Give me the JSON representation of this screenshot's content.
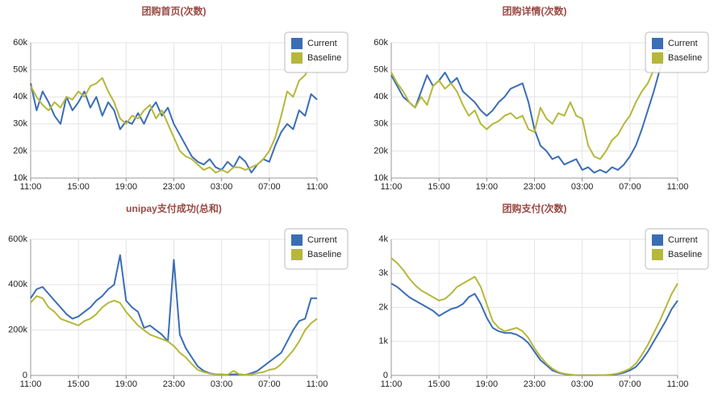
{
  "chart_data": [
    {
      "type": "line",
      "title": "团购首页(次数)",
      "x": [
        0,
        0.5,
        1,
        1.5,
        2,
        2.5,
        3,
        3.5,
        4,
        4.5,
        5,
        5.5,
        6,
        6.5,
        7,
        7.5,
        8,
        8.5,
        9,
        9.5,
        10,
        10.5,
        11,
        11.5,
        12,
        12.5,
        13,
        13.5,
        14,
        14.5,
        15,
        15.5,
        16,
        16.5,
        17,
        17.5,
        18,
        18.5,
        19,
        19.5,
        20,
        20.5,
        21,
        21.5,
        22,
        22.5,
        23,
        23.5,
        24
      ],
      "xlim": [
        0,
        24
      ],
      "xticks": [
        {
          "value": 0,
          "label": "11:00"
        },
        {
          "value": 4,
          "label": "15:00"
        },
        {
          "value": 8,
          "label": "19:00"
        },
        {
          "value": 12,
          "label": "23:00"
        },
        {
          "value": 16,
          "label": "03:00"
        },
        {
          "value": 20,
          "label": "07:00"
        },
        {
          "value": 24,
          "label": "11:00"
        }
      ],
      "ylim": [
        10000,
        60000
      ],
      "yticks": [
        {
          "value": 10000,
          "label": "10k"
        },
        {
          "value": 20000,
          "label": "20k"
        },
        {
          "value": 30000,
          "label": "30k"
        },
        {
          "value": 40000,
          "label": "40k"
        },
        {
          "value": 50000,
          "label": "50k"
        },
        {
          "value": 60000,
          "label": "60k"
        }
      ],
      "grid": true,
      "legend": "upper right",
      "series": [
        {
          "name": "Current",
          "color": "#3b6db5",
          "values": [
            45000,
            35000,
            42000,
            38000,
            33000,
            30000,
            40000,
            35000,
            38000,
            42000,
            36000,
            40000,
            33000,
            38000,
            35000,
            28000,
            31000,
            30000,
            34000,
            30000,
            35000,
            38000,
            33000,
            36000,
            30000,
            26000,
            22000,
            18000,
            16000,
            15000,
            17000,
            14000,
            13000,
            16000,
            14000,
            18000,
            16000,
            12000,
            15000,
            17000,
            16000,
            22000,
            27000,
            30000,
            28000,
            35000,
            33000,
            41000,
            39000
          ]
        },
        {
          "name": "Baseline",
          "color": "#b5b83a",
          "values": [
            44000,
            40000,
            37000,
            35000,
            38000,
            36000,
            40000,
            39000,
            42000,
            40000,
            44000,
            45000,
            47000,
            42000,
            38000,
            32000,
            30000,
            33000,
            32000,
            35000,
            37000,
            32000,
            35000,
            30000,
            25000,
            20000,
            18000,
            17000,
            15000,
            13000,
            14000,
            12000,
            13000,
            12000,
            14000,
            14000,
            13000,
            14000,
            15000,
            17000,
            20000,
            25000,
            33000,
            42000,
            40000,
            46000,
            48000,
            53000,
            55000
          ]
        }
      ]
    },
    {
      "type": "line",
      "title": "团购详情(次数)",
      "x": [
        0,
        0.5,
        1,
        1.5,
        2,
        2.5,
        3,
        3.5,
        4,
        4.5,
        5,
        5.5,
        6,
        6.5,
        7,
        7.5,
        8,
        8.5,
        9,
        9.5,
        10,
        10.5,
        11,
        11.5,
        12,
        12.5,
        13,
        13.5,
        14,
        14.5,
        15,
        15.5,
        16,
        16.5,
        17,
        17.5,
        18,
        18.5,
        19,
        19.5,
        20,
        20.5,
        21,
        21.5,
        22,
        22.5,
        23,
        23.5,
        24
      ],
      "xlim": [
        0,
        24
      ],
      "xticks": [
        {
          "value": 0,
          "label": "11:00"
        },
        {
          "value": 4,
          "label": "15:00"
        },
        {
          "value": 8,
          "label": "19:00"
        },
        {
          "value": 12,
          "label": "23:00"
        },
        {
          "value": 16,
          "label": "03:00"
        },
        {
          "value": 20,
          "label": "07:00"
        },
        {
          "value": 24,
          "label": "11:00"
        }
      ],
      "ylim": [
        10000,
        60000
      ],
      "yticks": [
        {
          "value": 10000,
          "label": "10k"
        },
        {
          "value": 20000,
          "label": "20k"
        },
        {
          "value": 30000,
          "label": "30k"
        },
        {
          "value": 40000,
          "label": "40k"
        },
        {
          "value": 50000,
          "label": "50k"
        },
        {
          "value": 60000,
          "label": "60k"
        }
      ],
      "grid": true,
      "legend": "upper right",
      "series": [
        {
          "name": "Current",
          "color": "#3b6db5",
          "values": [
            48000,
            44000,
            40000,
            38000,
            36000,
            42000,
            48000,
            44000,
            46000,
            49000,
            45000,
            47000,
            42000,
            40000,
            38000,
            35000,
            33000,
            35000,
            38000,
            40000,
            43000,
            44000,
            45000,
            38000,
            28000,
            22000,
            20000,
            17000,
            18000,
            15000,
            16000,
            17000,
            13000,
            14000,
            12000,
            13000,
            12000,
            14000,
            13000,
            15000,
            18000,
            22000,
            28000,
            35000,
            42000,
            50000,
            57000,
            57000,
            null
          ]
        },
        {
          "name": "Baseline",
          "color": "#b5b83a",
          "values": [
            49000,
            45000,
            42000,
            38000,
            36000,
            40000,
            37000,
            44000,
            46000,
            43000,
            45000,
            42000,
            37000,
            33000,
            35000,
            30000,
            28000,
            30000,
            31000,
            33000,
            34000,
            32000,
            33000,
            28000,
            27000,
            36000,
            32000,
            30000,
            34000,
            33000,
            38000,
            33000,
            32000,
            22000,
            18000,
            17000,
            20000,
            24000,
            26000,
            30000,
            33000,
            38000,
            42000,
            45000,
            50000,
            55000,
            57000,
            55000,
            56000
          ]
        }
      ]
    },
    {
      "type": "line",
      "title": "unipay支付成功(总和)",
      "x": [
        0,
        0.5,
        1,
        1.5,
        2,
        2.5,
        3,
        3.5,
        4,
        4.5,
        5,
        5.5,
        6,
        6.5,
        7,
        7.5,
        8,
        8.5,
        9,
        9.5,
        10,
        10.5,
        11,
        11.5,
        12,
        12.5,
        13,
        13.5,
        14,
        14.5,
        15,
        15.5,
        16,
        16.5,
        17,
        17.5,
        18,
        18.5,
        19,
        19.5,
        20,
        20.5,
        21,
        21.5,
        22,
        22.5,
        23,
        23.5,
        24
      ],
      "xlim": [
        0,
        24
      ],
      "xticks": [
        {
          "value": 0,
          "label": "11:00"
        },
        {
          "value": 4,
          "label": "15:00"
        },
        {
          "value": 8,
          "label": "19:00"
        },
        {
          "value": 12,
          "label": "23:00"
        },
        {
          "value": 16,
          "label": "03:00"
        },
        {
          "value": 20,
          "label": "07:00"
        },
        {
          "value": 24,
          "label": "11:00"
        }
      ],
      "ylim": [
        0,
        600000
      ],
      "yticks": [
        0,
        {
          "value": 200000,
          "label": "200k"
        },
        {
          "value": 400000,
          "label": "400k"
        },
        {
          "value": 600000,
          "label": "600k"
        }
      ],
      "grid": true,
      "legend": "upper right",
      "series": [
        {
          "name": "Current",
          "color": "#3b6db5",
          "values": [
            340000,
            380000,
            390000,
            360000,
            330000,
            300000,
            270000,
            250000,
            260000,
            280000,
            300000,
            330000,
            350000,
            380000,
            400000,
            530000,
            330000,
            300000,
            280000,
            210000,
            220000,
            200000,
            180000,
            150000,
            510000,
            180000,
            120000,
            80000,
            40000,
            20000,
            10000,
            5000,
            5000,
            3000,
            5000,
            5000,
            3000,
            10000,
            20000,
            40000,
            60000,
            80000,
            100000,
            150000,
            200000,
            240000,
            250000,
            340000,
            340000
          ]
        },
        {
          "name": "Baseline",
          "color": "#b5b83a",
          "values": [
            320000,
            350000,
            340000,
            300000,
            280000,
            250000,
            240000,
            230000,
            220000,
            240000,
            250000,
            270000,
            300000,
            320000,
            330000,
            320000,
            280000,
            250000,
            220000,
            200000,
            180000,
            170000,
            160000,
            150000,
            130000,
            100000,
            80000,
            50000,
            25000,
            15000,
            8000,
            5000,
            5000,
            3000,
            20000,
            5000,
            3000,
            5000,
            10000,
            15000,
            25000,
            30000,
            50000,
            80000,
            110000,
            150000,
            200000,
            230000,
            250000
          ]
        }
      ]
    },
    {
      "type": "line",
      "title": "团购支付(次数)",
      "x": [
        0,
        0.5,
        1,
        1.5,
        2,
        2.5,
        3,
        3.5,
        4,
        4.5,
        5,
        5.5,
        6,
        6.5,
        7,
        7.5,
        8,
        8.5,
        9,
        9.5,
        10,
        10.5,
        11,
        11.5,
        12,
        12.5,
        13,
        13.5,
        14,
        14.5,
        15,
        15.5,
        16,
        16.5,
        17,
        17.5,
        18,
        18.5,
        19,
        19.5,
        20,
        20.5,
        21,
        21.5,
        22,
        22.5,
        23,
        23.5,
        24
      ],
      "xlim": [
        0,
        24
      ],
      "xticks": [
        {
          "value": 0,
          "label": "11:00"
        },
        {
          "value": 4,
          "label": "15:00"
        },
        {
          "value": 8,
          "label": "19:00"
        },
        {
          "value": 12,
          "label": "23:00"
        },
        {
          "value": 16,
          "label": "03:00"
        },
        {
          "value": 20,
          "label": "07:00"
        },
        {
          "value": 24,
          "label": "11:00"
        }
      ],
      "ylim": [
        0,
        4000
      ],
      "yticks": [
        0,
        {
          "value": 1000,
          "label": "1k"
        },
        {
          "value": 2000,
          "label": "2k"
        },
        {
          "value": 3000,
          "label": "3k"
        },
        {
          "value": 4000,
          "label": "4k"
        }
      ],
      "grid": true,
      "legend": "upper right",
      "series": [
        {
          "name": "Current",
          "color": "#3b6db5",
          "values": [
            2700,
            2600,
            2450,
            2300,
            2200,
            2100,
            2000,
            1900,
            1750,
            1850,
            1950,
            2000,
            2100,
            2300,
            2400,
            2100,
            1700,
            1400,
            1300,
            1250,
            1250,
            1200,
            1100,
            950,
            700,
            450,
            300,
            150,
            80,
            40,
            20,
            10,
            5,
            5,
            5,
            10,
            10,
            20,
            40,
            80,
            150,
            250,
            450,
            700,
            1000,
            1300,
            1600,
            1950,
            2200
          ]
        },
        {
          "name": "Baseline",
          "color": "#b5b83a",
          "values": [
            3450,
            3300,
            3100,
            2850,
            2650,
            2500,
            2400,
            2300,
            2200,
            2250,
            2400,
            2600,
            2700,
            2800,
            2900,
            2600,
            2100,
            1600,
            1400,
            1300,
            1350,
            1400,
            1300,
            1100,
            800,
            550,
            350,
            200,
            100,
            50,
            25,
            10,
            5,
            5,
            5,
            10,
            15,
            30,
            60,
            120,
            200,
            350,
            600,
            900,
            1250,
            1600,
            2000,
            2400,
            2700
          ]
        }
      ]
    }
  ]
}
